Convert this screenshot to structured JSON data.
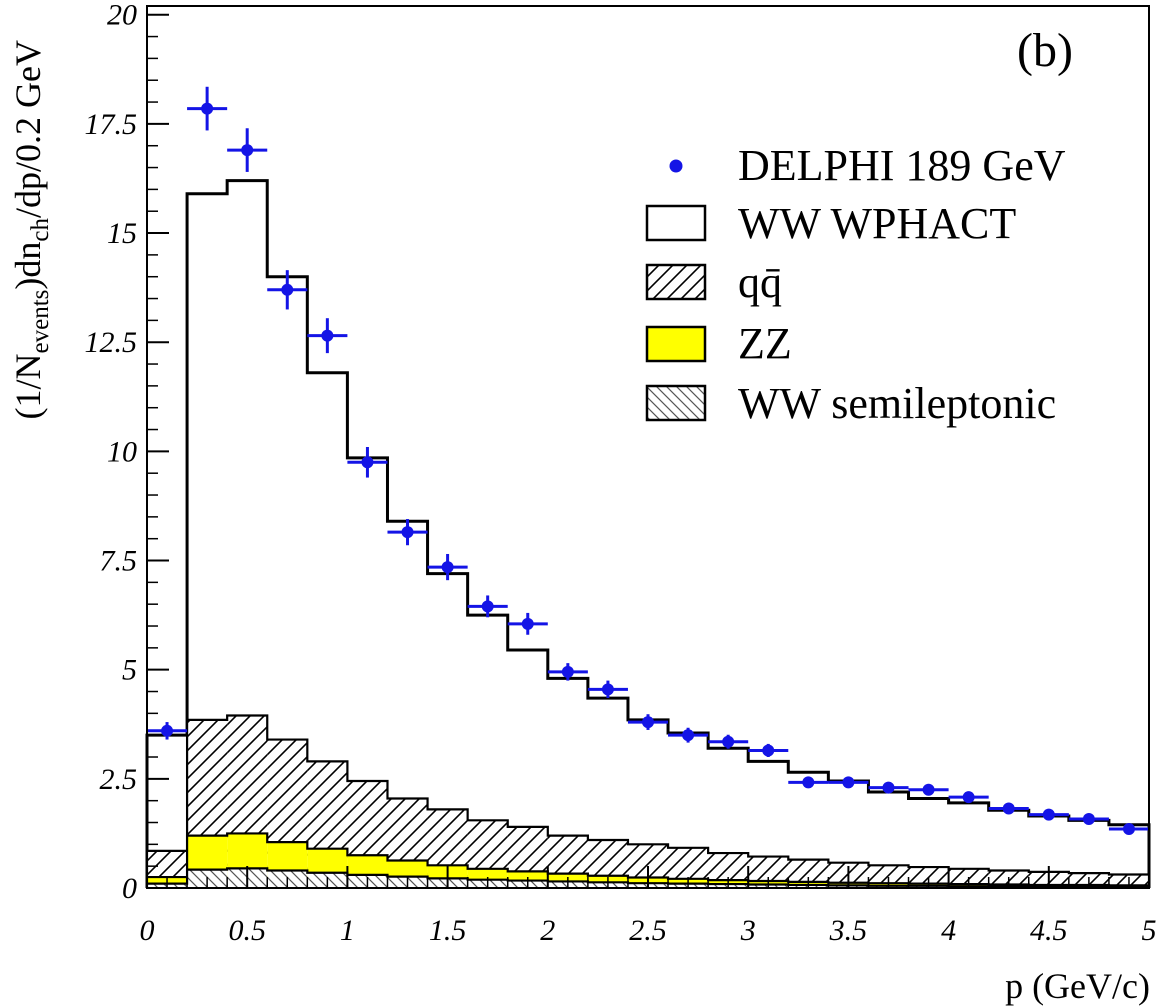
{
  "chart_data": {
    "type": "histogram",
    "panel_label": "(b)",
    "xlabel": "p (GeV/c)",
    "ylabel_parts": {
      "a": "(1/N",
      "b": "events",
      "c": ")dn",
      "d": "ch",
      "e": "/dp/0.2 GeV"
    },
    "xlim": [
      0,
      5
    ],
    "ylim": [
      0,
      20.2
    ],
    "x_ticks": [
      {
        "v": 0,
        "label": "0"
      },
      {
        "v": 0.5,
        "label": "0.5"
      },
      {
        "v": 1,
        "label": "1"
      },
      {
        "v": 1.5,
        "label": "1.5"
      },
      {
        "v": 2,
        "label": "2"
      },
      {
        "v": 2.5,
        "label": "2.5"
      },
      {
        "v": 3,
        "label": "3"
      },
      {
        "v": 3.5,
        "label": "3.5"
      },
      {
        "v": 4,
        "label": "4"
      },
      {
        "v": 4.5,
        "label": "4.5"
      },
      {
        "v": 5,
        "label": "5"
      }
    ],
    "y_ticks": [
      {
        "v": 0,
        "label": "0"
      },
      {
        "v": 2.5,
        "label": "2.5"
      },
      {
        "v": 5,
        "label": "5"
      },
      {
        "v": 7.5,
        "label": "7.5"
      },
      {
        "v": 10,
        "label": "10"
      },
      {
        "v": 12.5,
        "label": "12.5"
      },
      {
        "v": 15,
        "label": "15"
      },
      {
        "v": 17.5,
        "label": "17.5"
      },
      {
        "v": 20,
        "label": "20"
      }
    ],
    "bin_edges": [
      0,
      0.2,
      0.4,
      0.6,
      0.8,
      1.0,
      1.2,
      1.4,
      1.6,
      1.8,
      2.0,
      2.2,
      2.4,
      2.6,
      2.8,
      3.0,
      3.2,
      3.4,
      3.6,
      3.8,
      4.0,
      4.2,
      4.4,
      4.6,
      4.8,
      5.0
    ],
    "series": [
      {
        "name": "WW WPHACT",
        "style": "outline",
        "values": [
          3.5,
          15.9,
          16.2,
          14.0,
          11.8,
          9.85,
          8.4,
          7.2,
          6.25,
          5.45,
          4.8,
          4.35,
          3.85,
          3.55,
          3.2,
          2.9,
          2.65,
          2.45,
          2.2,
          2.05,
          1.95,
          1.78,
          1.65,
          1.55,
          1.45
        ]
      },
      {
        "name": "q̄q",
        "legend_label": "qq̄",
        "style": "hatch-forward",
        "values": [
          0.85,
          3.85,
          3.95,
          3.4,
          2.9,
          2.45,
          2.05,
          1.8,
          1.55,
          1.4,
          1.2,
          1.1,
          1.0,
          0.92,
          0.8,
          0.72,
          0.65,
          0.58,
          0.52,
          0.48,
          0.44,
          0.4,
          0.37,
          0.34,
          0.31
        ]
      },
      {
        "name": "ZZ",
        "style": "yellow-fill",
        "color": "#ffff00",
        "values": [
          0.25,
          1.2,
          1.25,
          1.05,
          0.9,
          0.75,
          0.63,
          0.52,
          0.44,
          0.38,
          0.33,
          0.28,
          0.24,
          0.21,
          0.18,
          0.16,
          0.14,
          0.12,
          0.11,
          0.1,
          0.09,
          0.08,
          0.07,
          0.07,
          0.06
        ]
      },
      {
        "name": "WW semileptonic",
        "style": "hatch-backward",
        "values": [
          0.1,
          0.42,
          0.45,
          0.4,
          0.35,
          0.3,
          0.26,
          0.22,
          0.19,
          0.17,
          0.15,
          0.13,
          0.11,
          0.1,
          0.09,
          0.08,
          0.07,
          0.06,
          0.05,
          0.05,
          0.04,
          0.04,
          0.03,
          0.03,
          0.03
        ]
      }
    ],
    "data_points": {
      "name": "DELPHI 189 GeV",
      "color": "#1414e6",
      "x": [
        0.1,
        0.3,
        0.5,
        0.7,
        0.9,
        1.1,
        1.3,
        1.5,
        1.7,
        1.9,
        2.1,
        2.3,
        2.5,
        2.7,
        2.9,
        3.1,
        3.3,
        3.5,
        3.7,
        3.9,
        4.1,
        4.3,
        4.5,
        4.7,
        4.9
      ],
      "y": [
        3.6,
        17.85,
        16.9,
        13.7,
        12.65,
        9.75,
        8.15,
        7.35,
        6.45,
        6.05,
        4.95,
        4.55,
        3.8,
        3.5,
        3.35,
        3.15,
        2.42,
        2.42,
        2.3,
        2.25,
        2.08,
        1.82,
        1.68,
        1.58,
        1.35
      ],
      "yerr": [
        0.2,
        0.5,
        0.5,
        0.45,
        0.4,
        0.35,
        0.3,
        0.3,
        0.25,
        0.25,
        0.2,
        0.2,
        0.18,
        0.17,
        0.16,
        0.15,
        0.12,
        0.12,
        0.11,
        0.11,
        0.1,
        0.1,
        0.09,
        0.09,
        0.08
      ],
      "xerr": 0.1
    },
    "legend": [
      {
        "label": "DELPHI 189 GeV",
        "kind": "marker"
      },
      {
        "label": "WW WPHACT",
        "kind": "outline"
      },
      {
        "label": "qq̄",
        "kind": "hatch-forward"
      },
      {
        "label": "ZZ",
        "kind": "yellow-fill"
      },
      {
        "label": "WW semileptonic",
        "kind": "hatch-backward"
      }
    ]
  }
}
